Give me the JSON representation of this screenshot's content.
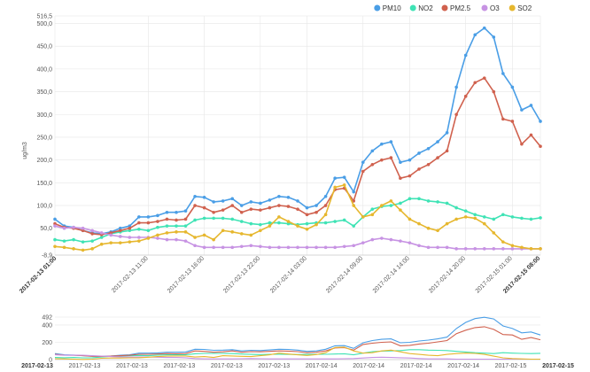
{
  "chart_data": [
    {
      "type": "line",
      "ylabel": "ug/m3",
      "ylim": [
        -8.9,
        516.5
      ],
      "ytick_labels": [
        "516,5",
        "500,0",
        "450,0",
        "400,0",
        "350,0",
        "300,0",
        "250,0",
        "200,0",
        "150,0",
        "100,0",
        "50,0",
        "-8,9"
      ],
      "yticks": [
        516.5,
        500,
        450,
        400,
        350,
        300,
        250,
        200,
        150,
        100,
        50,
        -8.9
      ],
      "x_start_label": "2017-02-13 01:00",
      "x_end_label": "2017-02-15 08:00",
      "xtick_labels": [
        "2017-02-13 11:00",
        "2017-02-13 16:00",
        "2017-02-13 22:00",
        "2017-02-14 03:00",
        "2017-02-14 09:00",
        "2017-02-14 14:00",
        "2017-02-14 20:00",
        "2017-02-15 01:00"
      ],
      "xtick_index": [
        10,
        16,
        22,
        27,
        33,
        38,
        44,
        49
      ],
      "legend_position": "top-right",
      "grid": true,
      "series": [
        {
          "name": "PM10",
          "color": "#4a9ee6",
          "values": [
            70,
            55,
            52,
            45,
            40,
            38,
            42,
            50,
            55,
            75,
            75,
            78,
            85,
            85,
            88,
            120,
            118,
            108,
            110,
            115,
            100,
            108,
            105,
            112,
            120,
            118,
            110,
            95,
            100,
            120,
            160,
            162,
            130,
            195,
            220,
            235,
            240,
            195,
            200,
            215,
            225,
            240,
            260,
            360,
            430,
            475,
            490,
            470,
            390,
            360,
            310,
            320,
            285
          ]
        },
        {
          "name": "NO2",
          "color": "#3fe3b5",
          "values": [
            25,
            22,
            25,
            20,
            22,
            30,
            38,
            42,
            45,
            48,
            45,
            52,
            55,
            55,
            55,
            68,
            72,
            72,
            72,
            70,
            65,
            60,
            58,
            62,
            62,
            60,
            58,
            60,
            62,
            62,
            65,
            68,
            55,
            75,
            92,
            98,
            100,
            105,
            115,
            115,
            110,
            108,
            105,
            95,
            88,
            80,
            75,
            70,
            80,
            75,
            72,
            70,
            73
          ]
        },
        {
          "name": "PM2.5",
          "color": "#d0614e",
          "values": [
            60,
            52,
            50,
            45,
            38,
            36,
            40,
            45,
            50,
            62,
            62,
            65,
            70,
            68,
            70,
            100,
            95,
            85,
            90,
            100,
            85,
            92,
            90,
            95,
            100,
            98,
            92,
            80,
            85,
            100,
            135,
            138,
            110,
            175,
            190,
            200,
            205,
            160,
            165,
            180,
            190,
            205,
            220,
            300,
            340,
            370,
            380,
            350,
            290,
            285,
            235,
            255,
            230
          ]
        },
        {
          "name": "O3",
          "color": "#c793e3",
          "values": [
            55,
            50,
            52,
            50,
            45,
            40,
            35,
            32,
            30,
            30,
            30,
            28,
            25,
            25,
            22,
            12,
            8,
            8,
            8,
            8,
            10,
            12,
            10,
            8,
            8,
            8,
            8,
            8,
            8,
            8,
            8,
            10,
            12,
            18,
            25,
            28,
            25,
            22,
            18,
            12,
            8,
            8,
            8,
            5,
            5,
            5,
            5,
            5,
            5,
            5,
            5,
            5,
            5
          ]
        },
        {
          "name": "SO2",
          "color": "#e6b72e",
          "values": [
            10,
            8,
            5,
            2,
            5,
            15,
            18,
            18,
            20,
            22,
            28,
            35,
            40,
            42,
            42,
            30,
            35,
            25,
            45,
            42,
            38,
            35,
            45,
            55,
            75,
            65,
            55,
            48,
            58,
            80,
            140,
            145,
            100,
            75,
            80,
            100,
            110,
            90,
            70,
            60,
            50,
            45,
            60,
            70,
            75,
            72,
            60,
            40,
            20,
            12,
            8,
            5,
            5
          ]
        }
      ]
    },
    {
      "type": "line",
      "title": "",
      "ylim": [
        0,
        492
      ],
      "ytick_labels": [
        "492",
        "400",
        "200",
        "0"
      ],
      "yticks": [
        492,
        400,
        200,
        0
      ],
      "xtick_labels": [
        "2017-02-13",
        "2017-02-13",
        "2017-02-13",
        "2017-02-13",
        "2017-02-13",
        "2017-02-13",
        "2017-02-14",
        "2017-02-14",
        "2017-02-14",
        "2017-02-14",
        "2017-02-15",
        "2017-02-15"
      ],
      "series_ref": "same-as-main"
    }
  ]
}
